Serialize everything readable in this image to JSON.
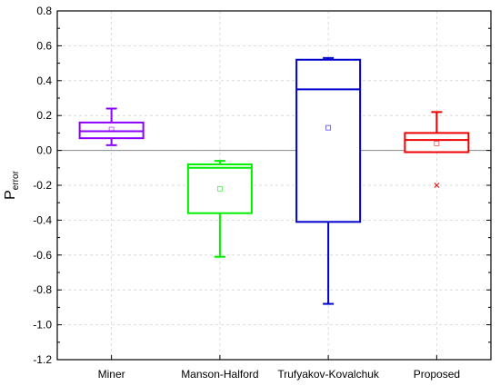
{
  "chart_data": {
    "type": "box",
    "ylabel": "P",
    "ylabel_subscript": "error",
    "ylim": [
      -1.2,
      0.8
    ],
    "y_ticks": [
      -1.2,
      -1.0,
      -0.8,
      -0.6,
      -0.4,
      -0.2,
      0.0,
      0.2,
      0.4,
      0.6,
      0.8
    ],
    "y_tick_labels": [
      "-1.2",
      "-1.0",
      "-0.8",
      "-0.6",
      "-0.4",
      "-0.2",
      "0.0",
      "0.2",
      "0.4",
      "0.6",
      "0.8"
    ],
    "grid": true,
    "zero_line": true,
    "categories": [
      "Miner",
      "Manson-Halford",
      "Trufyakov-Kovalchuk",
      "Proposed"
    ],
    "series": [
      {
        "category": "Miner",
        "color": "#8b00ff",
        "whisker_low": 0.03,
        "q1": 0.07,
        "median": 0.11,
        "q3": 0.16,
        "whisker_high": 0.24,
        "mean": 0.12,
        "outliers": []
      },
      {
        "category": "Manson-Halford",
        "color": "#00ee00",
        "whisker_low": -0.61,
        "q1": -0.36,
        "median": -0.1,
        "q3": -0.08,
        "whisker_high": -0.06,
        "mean": -0.22,
        "outliers": []
      },
      {
        "category": "Trufyakov-Kovalchuk",
        "color": "#0000cc",
        "whisker_low": -0.88,
        "q1": -0.41,
        "median": 0.35,
        "q3": 0.52,
        "whisker_high": 0.53,
        "mean": 0.13,
        "outliers": []
      },
      {
        "category": "Proposed",
        "color": "#ee0000",
        "whisker_low": -0.01,
        "q1": -0.01,
        "median": 0.06,
        "q3": 0.1,
        "whisker_high": 0.22,
        "mean": 0.04,
        "outliers": [
          -0.2
        ]
      }
    ]
  }
}
